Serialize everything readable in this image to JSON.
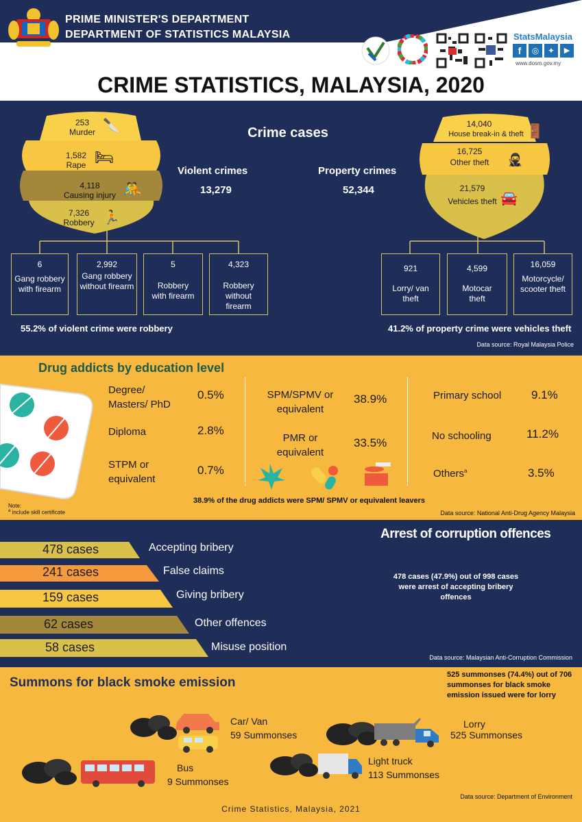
{
  "header": {
    "dept1": "PRIME MINISTER'S DEPARTMENT",
    "dept2": "DEPARTMENT OF STATISTICS MALAYSIA",
    "brand": "StatsMalaysia",
    "website": "www.dosm.gov.my",
    "title": "CRIME STATISTICS, MALAYSIA, 2020"
  },
  "crime": {
    "heading": "Crime cases",
    "violent": {
      "label": "Violent crimes",
      "total": "13,279"
    },
    "property": {
      "label": "Property crimes",
      "total": "52,344"
    },
    "violent_items": [
      {
        "value": "253",
        "label": "Murder"
      },
      {
        "value": "1,582",
        "label": "Rape"
      },
      {
        "value": "4,118",
        "label": "Causing injury"
      },
      {
        "value": "7,326",
        "label": "Robbery"
      }
    ],
    "property_items": [
      {
        "value": "14,040",
        "label": "House break-in & theft"
      },
      {
        "value": "16,725",
        "label": "Other theft"
      },
      {
        "value": "21,579",
        "label": "Vehicles theft"
      }
    ],
    "robbery_boxes": [
      {
        "value": "6",
        "label": "Gang robbery with firearm"
      },
      {
        "value": "2,992",
        "label": "Gang robbery without firearm"
      },
      {
        "value": "5",
        "label": "Robbery with firearm"
      },
      {
        "value": "4,323",
        "label": "Robbery without firearm"
      }
    ],
    "vehicle_boxes": [
      {
        "value": "921",
        "label": "Lorry/ van theft"
      },
      {
        "value": "4,599",
        "label": "Motocar theft"
      },
      {
        "value": "16,059",
        "label": "Motorcycle/ scooter theft"
      }
    ],
    "note_left": "55.2% of violent crime were robbery",
    "note_right": "41.2% of property crime were vehicles theft",
    "source": "Data source: Royal Malaysia Police"
  },
  "drug": {
    "heading": "Drug addicts by education level",
    "items": [
      {
        "label": "Degree/ Masters/ PhD",
        "pct": "0.5%"
      },
      {
        "label": "Diploma",
        "pct": "2.8%"
      },
      {
        "label": "STPM or equivalent",
        "pct": "0.7%"
      },
      {
        "label": "SPM/SPMV or equivalent",
        "pct": "38.9%"
      },
      {
        "label": "PMR or equivalent",
        "pct": "33.5%"
      },
      {
        "label": "Primary school",
        "pct": "9.1%"
      },
      {
        "label": "No schooling",
        "pct": "11.2%"
      },
      {
        "label": "Others",
        "pct": "3.5%"
      }
    ],
    "others_sup": "a",
    "summary": "38.9% of the drug addicts were SPM/ SPMV or equivalent leavers",
    "note_title": "Note:",
    "note_text": "include skill certificate",
    "note_sup": "a",
    "source": "Data source: National Anti-Drug Agency Malaysia"
  },
  "corruption": {
    "heading": "Arrest of corruption offences",
    "items": [
      {
        "cases": "478 cases",
        "label": "Accepting bribery",
        "color": "#d9c04a"
      },
      {
        "cases": "241 cases",
        "label": "False claims",
        "color": "#f59a3c"
      },
      {
        "cases": "159 cases",
        "label": "Giving bribery",
        "color": "#f8c742"
      },
      {
        "cases": "62 cases",
        "label": "Other offences",
        "color": "#a3883b"
      },
      {
        "cases": "58 cases",
        "label": "Misuse position",
        "color": "#d9c04a"
      }
    ],
    "summary": "478 cases (47.9%) out of 998 cases were arrest of accepting bribery offences",
    "source": "Data source: Malaysian Anti-Corruption Commission"
  },
  "smoke": {
    "heading": "Summons for black smoke emission",
    "summary": "525 summonses (74.4%) out of 706 summonses for black smoke emission issued were for lorry",
    "items": [
      {
        "label": "Car/ Van",
        "value": "59 Summonses"
      },
      {
        "label": "Lorry",
        "value": "525  Summonses"
      },
      {
        "label": "Bus",
        "value": "9  Summonses"
      },
      {
        "label": "Light truck",
        "value": "113 Summonses"
      }
    ],
    "source": "Data source: Department of Environment",
    "footer": "Crime Statistics, Malaysia, 2021"
  },
  "colors": {
    "navy": "#1f2d59",
    "orange": "#f6b83e",
    "gold": "#d8c463"
  }
}
